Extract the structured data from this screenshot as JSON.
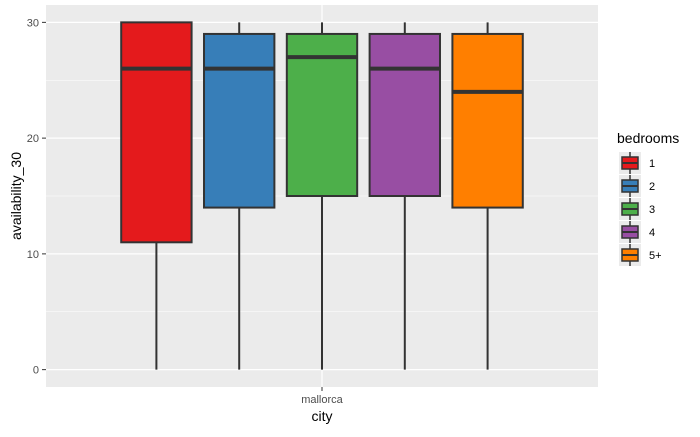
{
  "chart_data": {
    "type": "boxplot",
    "title": "",
    "xlabel": "city",
    "ylabel": "availability_30",
    "categories": [
      "mallorca"
    ],
    "ylim": [
      -1.5,
      31.5
    ],
    "yticks": [
      0,
      10,
      20,
      30
    ],
    "grid": true,
    "legend": {
      "title": "bedrooms",
      "placement": "right"
    },
    "series": [
      {
        "name": "1",
        "color": "#E41A1C",
        "min": 0,
        "q1": 11,
        "median": 26,
        "q3": 30,
        "max": 30
      },
      {
        "name": "2",
        "color": "#377EB8",
        "min": 0,
        "q1": 14,
        "median": 26,
        "q3": 29,
        "max": 30
      },
      {
        "name": "3",
        "color": "#4DAF4A",
        "min": 0,
        "q1": 15,
        "median": 27,
        "q3": 29,
        "max": 30
      },
      {
        "name": "4",
        "color": "#984EA3",
        "min": 0,
        "q1": 15,
        "median": 26,
        "q3": 29,
        "max": 30
      },
      {
        "name": "5+",
        "color": "#FF7F00",
        "min": 0,
        "q1": 14,
        "median": 24,
        "q3": 29,
        "max": 30
      }
    ],
    "colors": {
      "panel": "#EBEBEB",
      "grid": "#FFFFFF",
      "outline": "#333333",
      "text": "#4D4D4D",
      "title": "#000000"
    }
  }
}
